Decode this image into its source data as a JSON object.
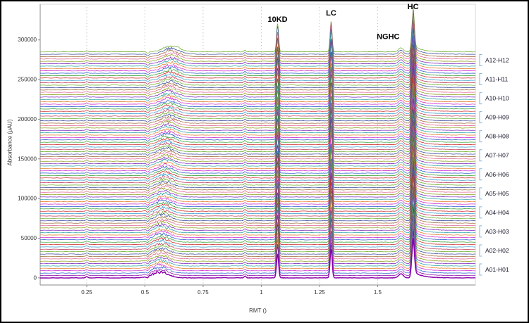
{
  "window": {
    "background": "#ffffff",
    "border_color": "#000000"
  },
  "chart_data": {
    "type": "line",
    "title": "",
    "xlabel": "RMT ()",
    "ylabel": "Absorbance (μAU)",
    "x_ticks": [
      0.25,
      0.5,
      0.75,
      1,
      1.25,
      1.5
    ],
    "x_tick_labels": [
      "0.25",
      "0.5",
      "0.75",
      "1",
      "1.25",
      "1.5"
    ],
    "y_ticks": [
      0,
      50000,
      100000,
      150000,
      200000,
      250000,
      300000
    ],
    "y_tick_labels": [
      "0",
      "50000",
      "100000",
      "150000",
      "200000",
      "250000",
      "300000"
    ],
    "xlim": [
      0.05,
      1.92
    ],
    "ylim": [
      -9000,
      345000
    ],
    "grid": "vertical-dotted",
    "legend_position": "right",
    "num_traces": 96,
    "trace_offset_step": 3000,
    "groups": [
      "A12-H12",
      "A11-H11",
      "A10-H10",
      "A09-H09",
      "A08-H08",
      "A07-H07",
      "A06-H06",
      "A05-H05",
      "A04-H04",
      "A03-H03",
      "A02-H02",
      "A01-H01"
    ],
    "annotations": [
      {
        "label": "10KD",
        "x": 1.07,
        "y_uau": 323000
      },
      {
        "label": "LC",
        "x": 1.3,
        "y_uau": 331000
      },
      {
        "label": "NGHC",
        "x": 1.545,
        "y_uau": 301000
      },
      {
        "label": "HC",
        "x": 1.652,
        "y_uau": 339000
      }
    ],
    "peaks": [
      {
        "name": "baseline-blip",
        "x": 0.25,
        "amplitude": 1500,
        "sigma": 0.0045
      },
      {
        "name": "matrix-hump",
        "x_start": 0.5,
        "x_end": 0.67,
        "amplitude": 7500
      },
      {
        "name": "pre-peak",
        "x": 0.93,
        "amplitude": 2200,
        "sigma": 0.004
      },
      {
        "name": "10KD",
        "x": 1.07,
        "amplitude": 33000,
        "sigma": 0.0045
      },
      {
        "name": "LC",
        "x": 1.3,
        "amplitude": 40000,
        "sigma": 0.0045
      },
      {
        "name": "NGHC",
        "x": 1.6,
        "amplitude": 5000,
        "sigma": 0.01
      },
      {
        "name": "HC",
        "x": 1.652,
        "amplitude": 46000,
        "sigma": 0.0055,
        "tail": 8500
      }
    ],
    "palette": [
      "#cc2222",
      "#2a9d2a",
      "#2255cc",
      "#cc22cc",
      "#e07820",
      "#20a0a0",
      "#7722bb",
      "#889911",
      "#e06090",
      "#996633",
      "#334499",
      "#66aa22",
      "#bb3355",
      "#3399cc"
    ],
    "colors": {
      "grid": "#b8b8b8",
      "axis": "#8a8a8a",
      "plot_border": "#d9d9d9",
      "tick_text": "#333333",
      "annotation": "#000000",
      "group_label": "#15152a",
      "bracket": "#8ab4d8",
      "bottom_trace": "#8a00a8"
    }
  }
}
